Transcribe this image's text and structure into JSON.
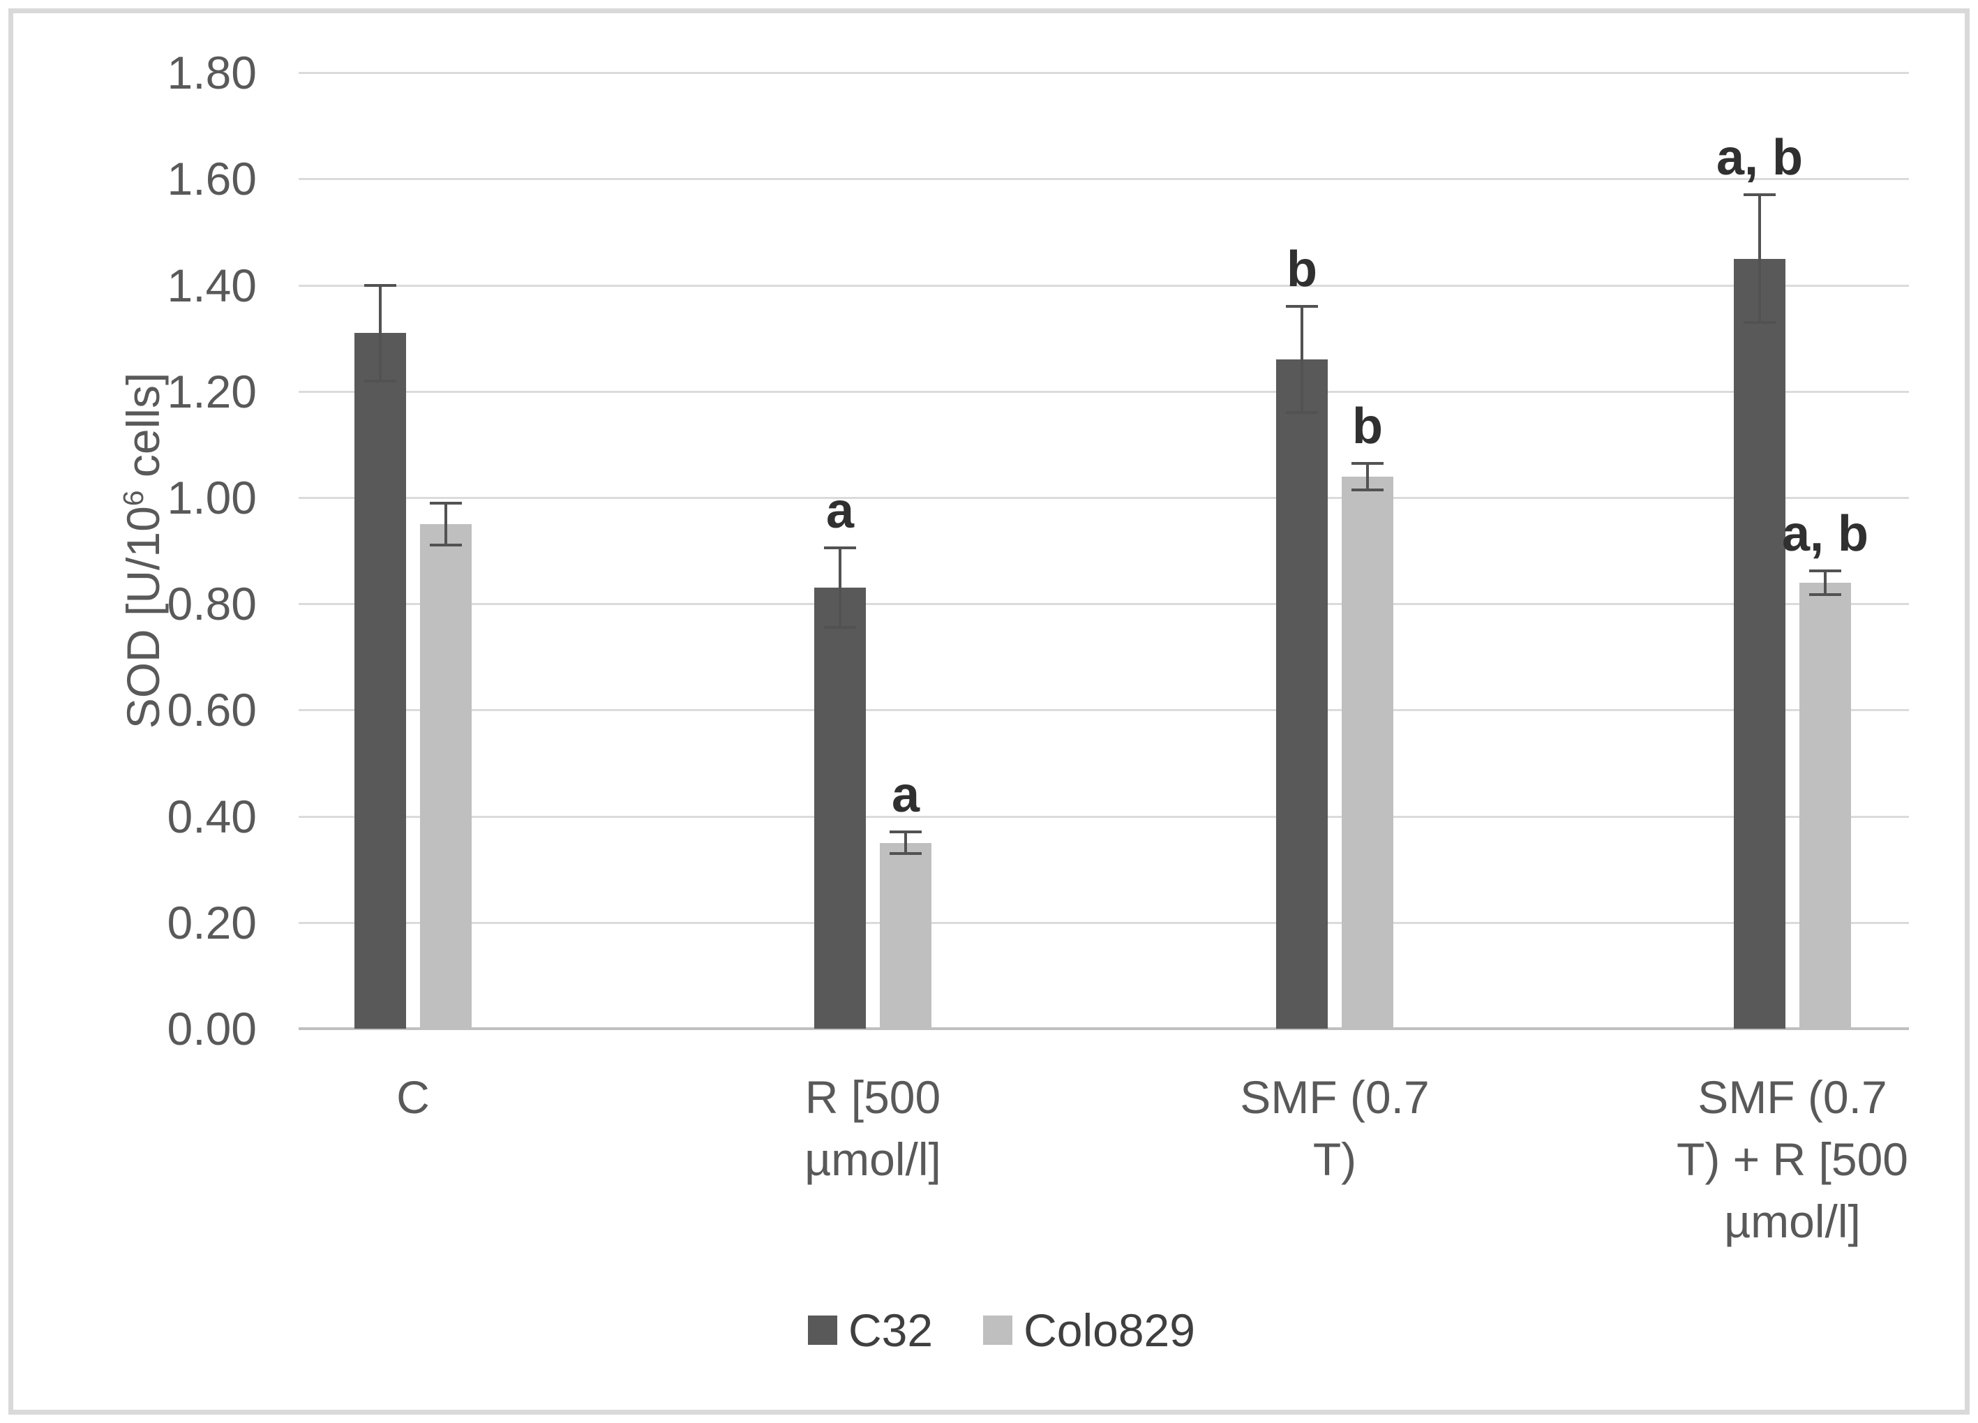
{
  "chart_data": {
    "type": "bar",
    "title": "",
    "xlabel": "",
    "ylabel": "SOD [U/10⁶ cells]",
    "ylabel_parts": {
      "prefix": "SOD [U/10",
      "sup": "6",
      "suffix": " cells]"
    },
    "ylim": [
      0.0,
      1.8
    ],
    "ytick_step": 0.2,
    "grid": true,
    "legend_position": "bottom-center",
    "yticks": [
      {
        "value": 1.8,
        "label": "1.80"
      },
      {
        "value": 1.6,
        "label": "1.60"
      },
      {
        "value": 1.4,
        "label": "1.40"
      },
      {
        "value": 1.2,
        "label": "1.20"
      },
      {
        "value": 1.0,
        "label": "1.00"
      },
      {
        "value": 0.8,
        "label": "0.80"
      },
      {
        "value": 0.6,
        "label": "0.60"
      },
      {
        "value": 0.4,
        "label": "0.40"
      },
      {
        "value": 0.2,
        "label": "0.20"
      },
      {
        "value": 0.0,
        "label": "0.00"
      }
    ],
    "categories": [
      "C",
      "R [500 µmol/l]",
      "SMF (0.7 T)",
      "SMF (0.7 T) + R [500 µmol/l]"
    ],
    "category_label_lines": [
      [
        "C"
      ],
      [
        "R [500",
        "µmol/l]"
      ],
      [
        "SMF (0.7",
        "T)"
      ],
      [
        "SMF (0.7",
        "T) + R [500",
        "µmol/l]"
      ]
    ],
    "series": [
      {
        "name": "C32",
        "color": "#595959",
        "values": [
          1.31,
          0.83,
          1.26,
          1.45
        ],
        "errors": [
          0.09,
          0.075,
          0.1,
          0.12
        ],
        "annotations": [
          "",
          "a",
          "b",
          "a, b"
        ]
      },
      {
        "name": "Colo829",
        "color": "#bfbfbf",
        "values": [
          0.95,
          0.35,
          1.04,
          0.84
        ],
        "errors": [
          0.04,
          0.02,
          0.025,
          0.022
        ],
        "annotations": [
          "",
          "a",
          "b",
          "a, b"
        ]
      }
    ]
  },
  "colors": {
    "background": "#ffffff",
    "figure_border": "#d9d9d9",
    "gridline": "#dbdbdb",
    "axis_line": "#c0c0c0",
    "error_bar": "#525252",
    "tick_text": "#595959",
    "category_text": "#595959",
    "annotation_text": "#303030",
    "legend_text": "#3f3f3f",
    "series_c32": "#595959",
    "series_colo829": "#bfbfbf"
  }
}
